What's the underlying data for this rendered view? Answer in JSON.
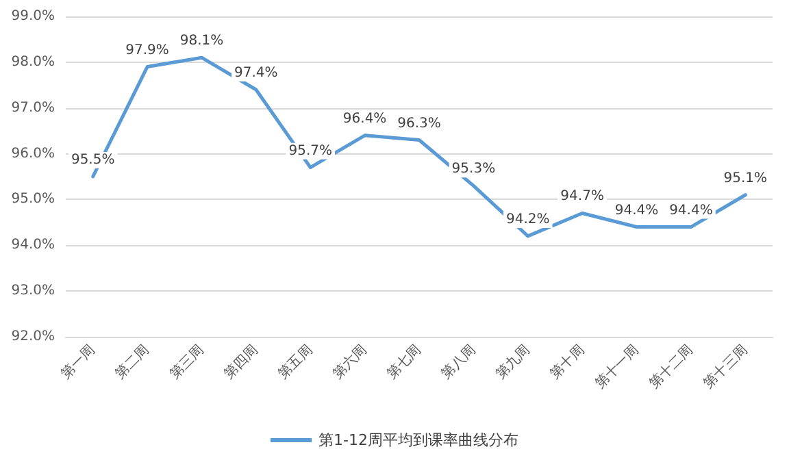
{
  "chart_data": {
    "type": "line",
    "categories": [
      "第一周",
      "第二周",
      "第三周",
      "第四周",
      "第五周",
      "第六周",
      "第七周",
      "第八周",
      "第九周",
      "第十周",
      "第十一周",
      "第十二周",
      "第十三周"
    ],
    "series": [
      {
        "name": "第1-12周平均到课率曲线分布",
        "color": "#5b9bd5",
        "values": [
          95.5,
          97.9,
          98.1,
          97.4,
          95.7,
          96.4,
          96.3,
          95.3,
          94.2,
          94.7,
          94.4,
          94.4,
          95.1
        ],
        "value_labels": [
          "95.5%",
          "97.9%",
          "98.1%",
          "97.4%",
          "95.7%",
          "96.4%",
          "96.3%",
          "95.3%",
          "94.2%",
          "94.7%",
          "94.4%",
          "94.4%",
          "95.1%"
        ]
      }
    ],
    "ylim": [
      92,
      99
    ],
    "yticks": [
      {
        "value": 92,
        "label": "92.0%"
      },
      {
        "value": 93,
        "label": "93.0%"
      },
      {
        "value": 94,
        "label": "94.0%"
      },
      {
        "value": 95,
        "label": "95.0%"
      },
      {
        "value": 96,
        "label": "96.0%"
      },
      {
        "value": 97,
        "label": "97.0%"
      },
      {
        "value": 98,
        "label": "98.0%"
      },
      {
        "value": 99,
        "label": "99.0%"
      }
    ],
    "grid": "y",
    "legend": "bottom",
    "marker": "none",
    "line_style": "solid"
  }
}
